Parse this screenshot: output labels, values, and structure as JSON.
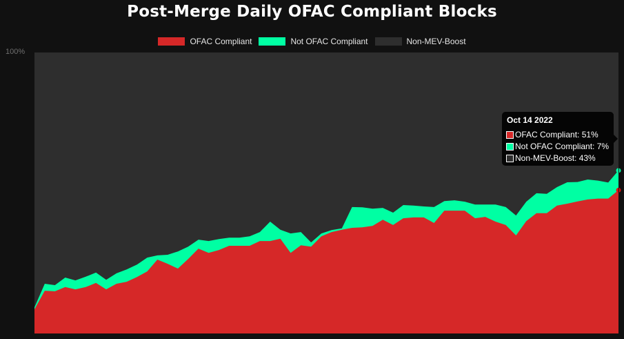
{
  "header": {
    "title": "Post-Merge Daily OFAC Compliant Blocks"
  },
  "legend": [
    {
      "label": "OFAC Compliant",
      "color": "#d62828"
    },
    {
      "label": "Not OFAC Compliant",
      "color": "#00ffa3"
    },
    {
      "label": "Non-MEV-Boost",
      "color": "#2e2e2e"
    }
  ],
  "axis": {
    "y_top_label": "100%"
  },
  "tooltip": {
    "title": "Oct 14 2022",
    "rows": [
      {
        "text": "OFAC Compliant: 51%",
        "color": "#d62828"
      },
      {
        "text": "Not OFAC Compliant: 7%",
        "color": "#00ffa3"
      },
      {
        "text": "Non-MEV-Boost: 43%",
        "color": "#2e2e2e"
      }
    ]
  },
  "chart_data": {
    "type": "area",
    "stacked": true,
    "title": "Post-Merge Daily OFAC Compliant Blocks",
    "xlabel": "",
    "ylabel": "",
    "ylim": [
      0,
      100
    ],
    "y_tick_labels": [
      "100%"
    ],
    "grid": false,
    "legend_position": "top",
    "x_last_label": "Oct 14 2022",
    "x": [
      0,
      1,
      2,
      3,
      4,
      5,
      6,
      7,
      8,
      9,
      10,
      11,
      12,
      13,
      14,
      15,
      16,
      17,
      18,
      19,
      20,
      21,
      22,
      23,
      24,
      25,
      26,
      27,
      28,
      29,
      30,
      31,
      32,
      33,
      34,
      35,
      36,
      37,
      38,
      39,
      40,
      41,
      42,
      43,
      44,
      45,
      46,
      47,
      48,
      49,
      50,
      51,
      52,
      53,
      54,
      55,
      56,
      57
    ],
    "series": [
      {
        "name": "OFAC Compliant",
        "color": "#d62828",
        "values": [
          8.6,
          15.2,
          15.0,
          16.5,
          15.7,
          16.5,
          18.0,
          15.7,
          17.7,
          18.4,
          20.1,
          22.1,
          26.3,
          24.8,
          23.1,
          26.5,
          30.2,
          28.7,
          29.7,
          31.2,
          31.2,
          31.2,
          32.9,
          32.9,
          33.7,
          28.7,
          31.4,
          30.9,
          34.6,
          36.1,
          36.9,
          37.6,
          37.8,
          38.3,
          40.5,
          38.6,
          41.0,
          41.3,
          41.3,
          39.3,
          43.7,
          43.7,
          43.7,
          41.0,
          41.5,
          39.8,
          38.6,
          34.9,
          40.0,
          42.8,
          42.8,
          45.5,
          46.2,
          47.0,
          47.7,
          48.0,
          48.0,
          51.0
        ]
      },
      {
        "name": "Not OFAC Compliant",
        "color": "#00ffa3",
        "values": [
          0.7,
          2.5,
          2.2,
          3.4,
          3.2,
          3.7,
          3.7,
          3.4,
          3.7,
          4.4,
          4.4,
          4.9,
          1.5,
          3.2,
          6.1,
          4.4,
          3.2,
          4.2,
          3.9,
          2.9,
          2.9,
          3.4,
          3.2,
          6.9,
          3.2,
          6.9,
          4.7,
          1.5,
          1.0,
          0.7,
          0.5,
          7.4,
          7.1,
          6.1,
          4.2,
          4.4,
          4.7,
          4.2,
          3.9,
          5.7,
          3.4,
          3.7,
          3.2,
          4.9,
          4.4,
          6.1,
          6.4,
          7.1,
          6.9,
          7.1,
          6.9,
          6.6,
          7.6,
          6.9,
          7.1,
          6.4,
          5.7,
          7.0
        ]
      },
      {
        "name": "Non-MEV-Boost",
        "color": "#2e2e2e",
        "values": [
          90.7,
          82.3,
          82.8,
          80.1,
          81.1,
          79.8,
          78.3,
          80.9,
          78.6,
          77.2,
          75.5,
          73.0,
          72.2,
          72.0,
          70.8,
          69.1,
          66.6,
          67.1,
          66.4,
          65.9,
          65.9,
          65.4,
          63.9,
          60.2,
          63.1,
          64.4,
          63.9,
          67.6,
          64.4,
          63.2,
          62.6,
          55.0,
          55.1,
          55.6,
          55.3,
          57.0,
          54.3,
          54.5,
          54.8,
          55.0,
          52.9,
          52.6,
          53.1,
          54.1,
          54.1,
          54.1,
          55.0,
          58.0,
          53.1,
          50.1,
          50.3,
          47.9,
          46.2,
          46.1,
          45.2,
          45.6,
          46.3,
          43.0
        ]
      }
    ]
  }
}
